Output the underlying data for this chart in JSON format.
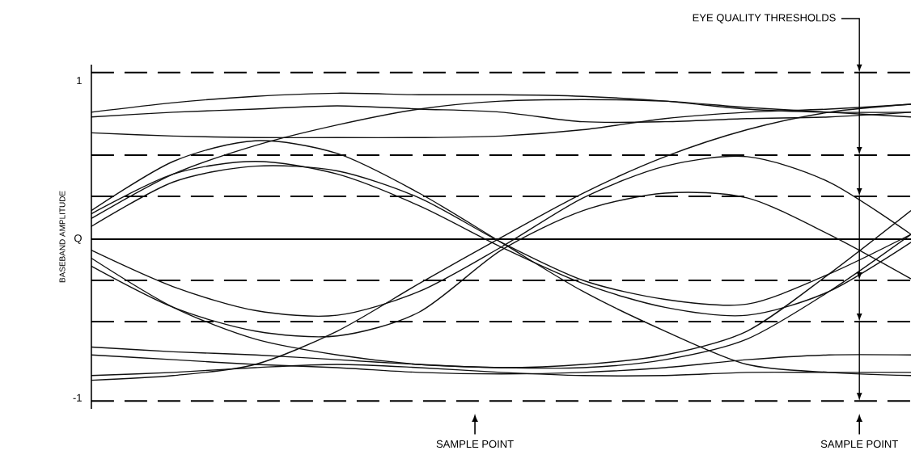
{
  "chart_data": {
    "type": "line",
    "ylabel": "BASEBAND AMPLITUDE",
    "categories": [
      null,
      null,
      null,
      null,
      null,
      null,
      null,
      null,
      null,
      null,
      null
    ],
    "ylim": [
      -1.07,
      1.1
    ],
    "yticks": [
      1,
      {
        "value": 0,
        "label": "Q"
      },
      -1
    ],
    "marker": "none",
    "line_style": "solid",
    "series": [
      {
        "color": "#111111",
        "values": [
          0.8,
          0.86,
          0.9,
          0.92,
          0.91,
          0.91,
          0.9,
          0.87,
          0.82,
          0.8,
          0.8
        ]
      },
      {
        "color": "#111111",
        "values": [
          0.77,
          0.8,
          0.82,
          0.84,
          0.82,
          0.8,
          0.74,
          0.74,
          0.76,
          0.77,
          0.8
        ]
      },
      {
        "color": "#111111",
        "values": [
          0.67,
          0.65,
          0.64,
          0.64,
          0.64,
          0.65,
          0.69,
          0.76,
          0.8,
          0.82,
          0.85
        ]
      },
      {
        "color": "#111111",
        "values": [
          0.13,
          0.41,
          0.59,
          0.72,
          0.82,
          0.87,
          0.88,
          0.87,
          0.83,
          0.8,
          0.77
        ]
      },
      {
        "color": "#111111",
        "values": [
          0.16,
          0.41,
          0.49,
          0.41,
          0.21,
          -0.05,
          -0.28,
          -0.43,
          -0.48,
          -0.33,
          -0.02
        ]
      },
      {
        "color": "#111111",
        "values": [
          0.08,
          0.36,
          0.46,
          0.43,
          0.26,
          -0.02,
          -0.26,
          -0.38,
          -0.41,
          -0.22,
          0.03
        ]
      },
      {
        "color": "#111111",
        "values": [
          -0.07,
          -0.3,
          -0.45,
          -0.48,
          -0.33,
          -0.05,
          0.26,
          0.46,
          0.52,
          0.36,
          0.03
        ]
      },
      {
        "color": "#111111",
        "values": [
          -0.12,
          -0.43,
          -0.63,
          -0.73,
          -0.79,
          -0.81,
          -0.81,
          -0.76,
          -0.63,
          -0.33,
          0.03
        ]
      },
      {
        "color": "#111111",
        "values": [
          -0.86,
          -0.84,
          -0.81,
          -0.79,
          -0.81,
          -0.84,
          -0.86,
          -0.86,
          -0.84,
          -0.84,
          -0.84
        ]
      },
      {
        "color": "#111111",
        "values": [
          -0.73,
          -0.76,
          -0.79,
          -0.81,
          -0.84,
          -0.85,
          -0.84,
          -0.81,
          -0.76,
          -0.73,
          -0.73
        ]
      },
      {
        "color": "#111111",
        "values": [
          -0.89,
          -0.86,
          -0.79,
          -0.58,
          -0.28,
          0.01,
          0.29,
          0.52,
          0.69,
          0.8,
          0.85
        ]
      },
      {
        "color": "#111111",
        "values": [
          0.18,
          0.49,
          0.62,
          0.54,
          0.29,
          -0.02,
          -0.33,
          -0.58,
          -0.79,
          -0.84,
          -0.86
        ]
      },
      {
        "color": "#111111",
        "values": [
          -0.68,
          -0.71,
          -0.73,
          -0.76,
          -0.79,
          -0.81,
          -0.79,
          -0.73,
          -0.58,
          -0.22,
          0.18
        ]
      },
      {
        "color": "#111111",
        "values": [
          -0.17,
          -0.43,
          -0.58,
          -0.61,
          -0.46,
          -0.07,
          0.18,
          0.29,
          0.26,
          0.03,
          -0.25
        ]
      }
    ],
    "ref_lines": [
      {
        "axis": "y",
        "value": 1.05,
        "line_style": "dashed"
      },
      {
        "axis": "y",
        "value": 0.53,
        "line_style": "dashed"
      },
      {
        "axis": "y",
        "value": 0.27,
        "line_style": "dashed"
      },
      {
        "axis": "y",
        "value": 0,
        "line_style": "solid"
      },
      {
        "axis": "y",
        "value": -0.26,
        "line_style": "dashed"
      },
      {
        "axis": "y",
        "value": -0.52,
        "line_style": "dashed"
      },
      {
        "axis": "y",
        "value": -1.02,
        "line_style": "dashed"
      }
    ],
    "annotations": [
      "EYE QUALITY THRESHOLDS",
      "SAMPLE POINT",
      "SAMPLE POINT"
    ]
  }
}
